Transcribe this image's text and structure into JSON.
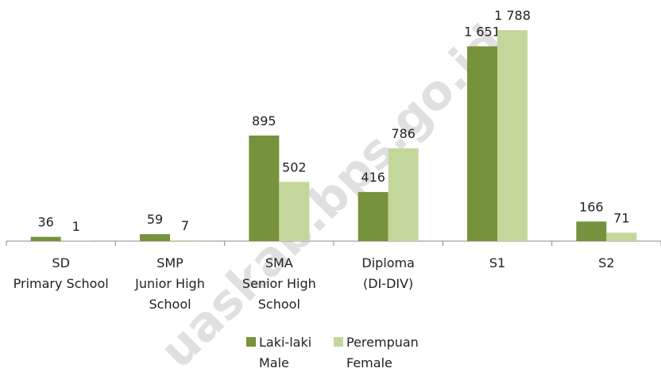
{
  "chart_data": {
    "type": "bar",
    "categories": [
      "SD\nPrimary School",
      "SMP\nJunior High\nSchool",
      "SMA\nSenior High\nSchool",
      "Diploma\n(DI-DIV)",
      "S1",
      "S2"
    ],
    "series": [
      {
        "name": "Laki-laki\nMale",
        "color": "#76923c",
        "values": [
          36,
          59,
          895,
          416,
          1651,
          166
        ],
        "value_labels": [
          "36",
          "59",
          "895",
          "416",
          "1 651",
          "166"
        ]
      },
      {
        "name": "Perempuan\nFemale",
        "color": "#c4d79b",
        "values": [
          1,
          7,
          502,
          786,
          1788,
          71
        ],
        "value_labels": [
          "1",
          "7",
          "502",
          "786",
          "1 788",
          "71"
        ]
      }
    ],
    "watermark": "uaskab.bps.go.id"
  }
}
